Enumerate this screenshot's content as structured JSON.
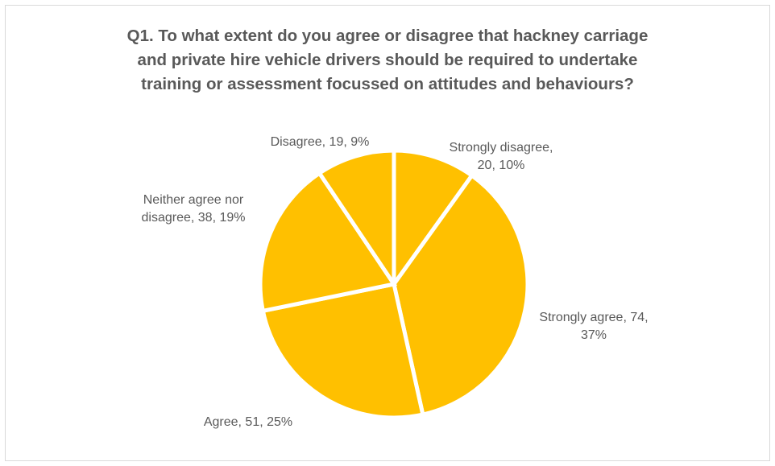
{
  "chart_data": {
    "type": "pie",
    "title_lines": [
      "Q1. To what extent do you agree or disagree that hackney carriage",
      "and private hire vehicle drivers should be required to undertake",
      "training or assessment focussed on attitudes and behaviours?"
    ],
    "start_angle_deg": 0,
    "direction": "clockwise",
    "slices": [
      {
        "category": "Strongly disagree",
        "value": 20,
        "percent": "10%",
        "color": "#FFC000",
        "label_lines": [
          "Strongly disagree,",
          "20, 10%"
        ]
      },
      {
        "category": "Strongly agree",
        "value": 74,
        "percent": "37%",
        "color": "#FFC000",
        "label_lines": [
          "Strongly agree, 74,",
          "37%"
        ]
      },
      {
        "category": "Agree",
        "value": 51,
        "percent": "25%",
        "color": "#FFC000",
        "label_lines": [
          "Agree, 51, 25%"
        ]
      },
      {
        "category": "Neither agree nor disagree",
        "value": 38,
        "percent": "19%",
        "color": "#FFC000",
        "label_lines": [
          "Neither agree nor",
          "disagree, 38, 19%"
        ]
      },
      {
        "category": "Disagree",
        "value": 19,
        "percent": "9%",
        "color": "#FFC000",
        "label_lines": [
          "Disagree, 19, 9%"
        ]
      }
    ],
    "slice_border_color": "#FFFFFF",
    "label_color": "#595959",
    "title_color": "#595959",
    "legend": "none"
  }
}
